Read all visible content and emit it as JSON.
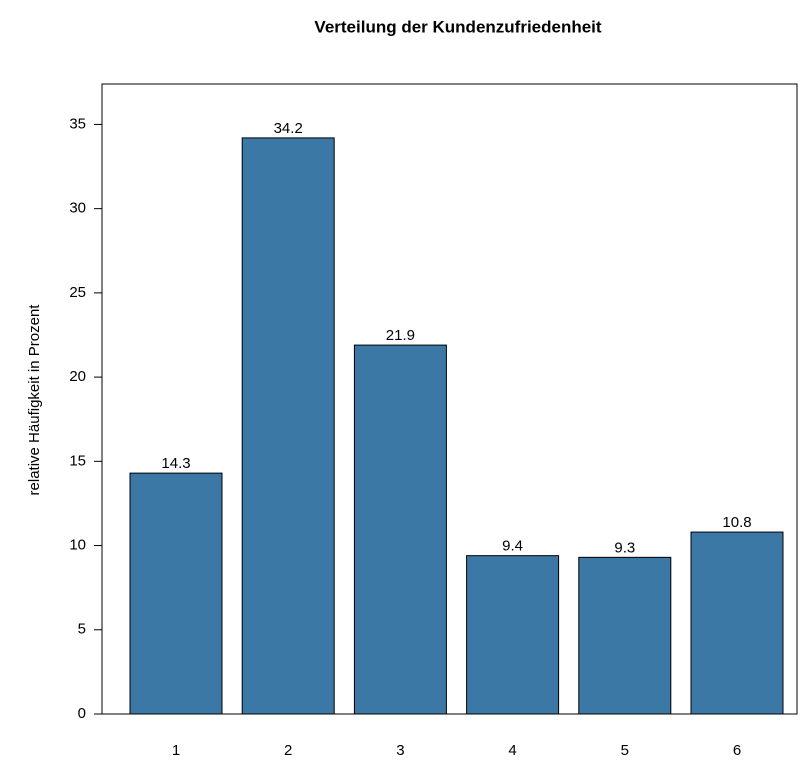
{
  "chart_data": {
    "type": "bar",
    "title": "Verteilung der Kundenzufriedenheit",
    "y_label": "relative Häufigkeit in Prozent",
    "categories": [
      "1",
      "2",
      "3",
      "4",
      "5",
      "6"
    ],
    "values": [
      14.3,
      34.2,
      21.9,
      9.4,
      9.3,
      10.8
    ],
    "color": "#3c78a6",
    "ylim": [
      0,
      37.4
    ],
    "yticks": [
      0,
      5,
      10,
      15,
      20,
      25,
      30,
      35
    ],
    "grid": false,
    "value_labels_shown": true
  }
}
